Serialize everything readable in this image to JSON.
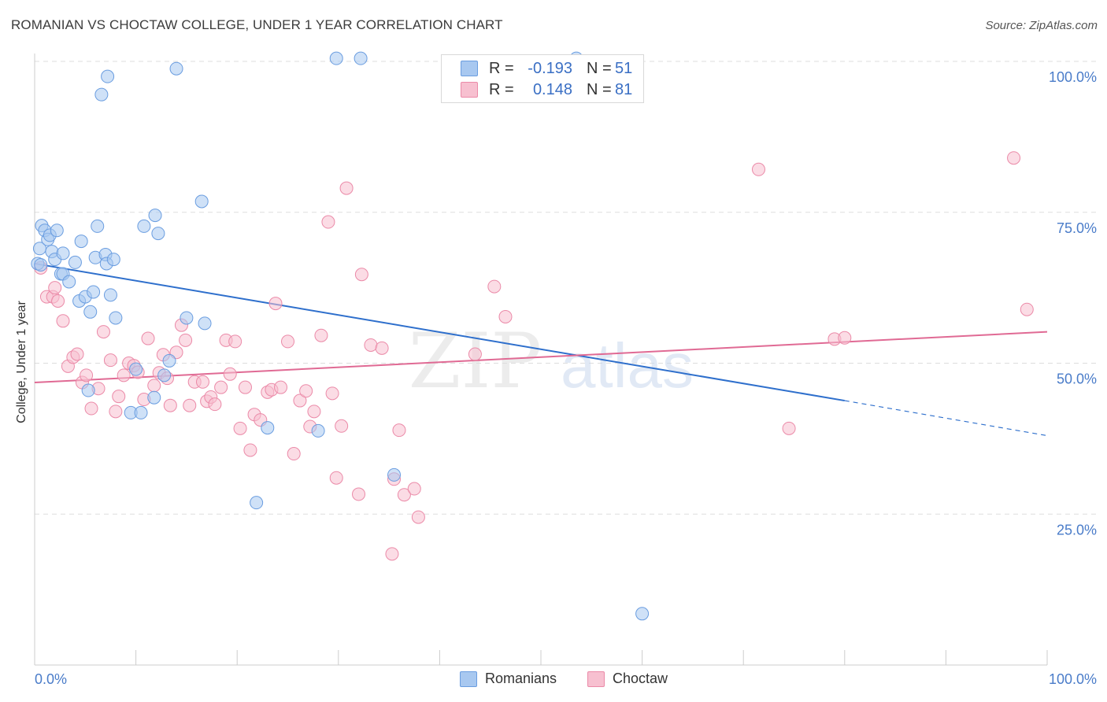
{
  "title": "ROMANIAN VS CHOCTAW COLLEGE, UNDER 1 YEAR CORRELATION CHART",
  "source": "Source: ZipAtlas.com",
  "legend": {
    "rows": [
      {
        "r_label": "R =",
        "r_value": "-0.193",
        "n_label": "N =",
        "n_value": "51",
        "color": "#a8c8f0"
      },
      {
        "r_label": "R =",
        "r_value": "0.148",
        "n_label": "N =",
        "n_value": "81",
        "color": "#f7b8ca"
      }
    ]
  },
  "bottom_legend": {
    "romanians": "Romanians",
    "choctaw": "Choctaw"
  },
  "colors": {
    "romanians_fill": "#a8c8f0",
    "romanians_stroke": "#6a9de0",
    "romanians_line": "#2e6fcc",
    "choctaw_fill": "#f7c0d0",
    "choctaw_stroke": "#eb8aa8",
    "choctaw_line": "#e06a94",
    "tick_label": "#4a7cc9",
    "grid": "#dddddd"
  },
  "watermark": {
    "part1": "ZIP",
    "part2": "atlas"
  },
  "chart_data": {
    "type": "scatter",
    "ylabel": "College, Under 1 year",
    "x_tick_labels": [
      "0.0%",
      "100.0%"
    ],
    "y_tick_labels": [
      "100.0%",
      "75.0%",
      "50.0%",
      "25.0%"
    ],
    "xlim": [
      0,
      100
    ],
    "ylim": [
      0,
      100
    ],
    "grid": true,
    "series": [
      {
        "name": "Romanians",
        "points": [
          [
            0.3,
            66.5
          ],
          [
            0.5,
            69
          ],
          [
            0.7,
            72.8
          ],
          [
            1.0,
            72.0
          ],
          [
            1.3,
            70.5
          ],
          [
            1.5,
            71.2
          ],
          [
            1.7,
            68.5
          ],
          [
            2.2,
            72
          ],
          [
            2.0,
            67.2
          ],
          [
            2.8,
            68.2
          ],
          [
            2.6,
            64.8
          ],
          [
            2.8,
            64.8
          ],
          [
            3.4,
            63.5
          ],
          [
            4.0,
            66.7
          ],
          [
            4.4,
            60.3
          ],
          [
            4.6,
            70.2
          ],
          [
            5.0,
            61
          ],
          [
            5.3,
            45.5
          ],
          [
            5.5,
            58.5
          ],
          [
            5.8,
            61.8
          ],
          [
            6.0,
            67.5
          ],
          [
            6.2,
            72.7
          ],
          [
            6.6,
            94.5
          ],
          [
            7.0,
            68
          ],
          [
            7.1,
            66.5
          ],
          [
            7.2,
            97.5
          ],
          [
            7.5,
            61.3
          ],
          [
            7.8,
            67.2
          ],
          [
            8.0,
            57.5
          ],
          [
            9.5,
            41.8
          ],
          [
            10,
            49
          ],
          [
            10.5,
            41.8
          ],
          [
            10.8,
            72.7
          ],
          [
            11.8,
            44.3
          ],
          [
            11.9,
            74.5
          ],
          [
            12.2,
            71.5
          ],
          [
            12.8,
            48
          ],
          [
            13.3,
            50.4
          ],
          [
            14,
            98.8
          ],
          [
            15,
            57.5
          ],
          [
            16.5,
            76.8
          ],
          [
            16.8,
            56.6
          ],
          [
            23,
            39.3
          ],
          [
            28,
            38.8
          ],
          [
            21.9,
            26.9
          ],
          [
            29.8,
            100.5
          ],
          [
            32.2,
            100.5
          ],
          [
            35.5,
            31.5
          ],
          [
            60,
            8.5
          ],
          [
            53.5,
            100.5
          ],
          [
            0.6,
            66.3
          ]
        ],
        "trend": {
          "x0": 0,
          "y0": 66.5,
          "x1": 80,
          "y1": 43.8,
          "dash_to_x": 100,
          "dash_to_y": 38.0
        }
      },
      {
        "name": "Choctaw",
        "points": [
          [
            0.6,
            65.8
          ],
          [
            1.2,
            61
          ],
          [
            1.8,
            61
          ],
          [
            2.0,
            62.5
          ],
          [
            2.3,
            60.3
          ],
          [
            2.8,
            57
          ],
          [
            3.3,
            49.5
          ],
          [
            3.8,
            51
          ],
          [
            4.2,
            51.5
          ],
          [
            4.7,
            46.8
          ],
          [
            5.1,
            48
          ],
          [
            5.6,
            42.5
          ],
          [
            6.3,
            45.8
          ],
          [
            6.8,
            55.2
          ],
          [
            7.5,
            50.5
          ],
          [
            8.0,
            42
          ],
          [
            8.3,
            44.5
          ],
          [
            8.8,
            48
          ],
          [
            9.3,
            50
          ],
          [
            9.8,
            49.6
          ],
          [
            10.2,
            48.5
          ],
          [
            10.8,
            44
          ],
          [
            11.2,
            54.1
          ],
          [
            11.8,
            46.3
          ],
          [
            12.3,
            48.4
          ],
          [
            12.7,
            51.4
          ],
          [
            13.1,
            47.5
          ],
          [
            13.4,
            43
          ],
          [
            14.0,
            51.8
          ],
          [
            14.5,
            56.3
          ],
          [
            14.9,
            53.8
          ],
          [
            15.3,
            43
          ],
          [
            15.8,
            46.9
          ],
          [
            16.6,
            46.9
          ],
          [
            17.0,
            43.7
          ],
          [
            17.4,
            44.4
          ],
          [
            17.8,
            43.2
          ],
          [
            18.4,
            46
          ],
          [
            18.9,
            53.8
          ],
          [
            19.3,
            48.2
          ],
          [
            19.8,
            53.6
          ],
          [
            20.3,
            39.2
          ],
          [
            20.8,
            46
          ],
          [
            21.3,
            35.6
          ],
          [
            21.7,
            41.5
          ],
          [
            22.3,
            40.6
          ],
          [
            23.0,
            45.2
          ],
          [
            23.4,
            45.6
          ],
          [
            23.8,
            59.9
          ],
          [
            24.3,
            46
          ],
          [
            25.0,
            53.6
          ],
          [
            25.6,
            35
          ],
          [
            26.2,
            43.8
          ],
          [
            26.8,
            45.4
          ],
          [
            27.2,
            39.5
          ],
          [
            27.6,
            42
          ],
          [
            28.3,
            54.6
          ],
          [
            29.0,
            73.4
          ],
          [
            29.4,
            45
          ],
          [
            29.8,
            31
          ],
          [
            30.3,
            39.6
          ],
          [
            30.8,
            79
          ],
          [
            32.0,
            28.3
          ],
          [
            32.3,
            64.7
          ],
          [
            33.2,
            53
          ],
          [
            34.3,
            52.5
          ],
          [
            35.5,
            30.8
          ],
          [
            36.0,
            38.9
          ],
          [
            36.5,
            28.2
          ],
          [
            37.5,
            29.2
          ],
          [
            37.9,
            24.5
          ],
          [
            35.3,
            18.4
          ],
          [
            43.5,
            51.5
          ],
          [
            45.4,
            62.7
          ],
          [
            46.5,
            57.7
          ],
          [
            71.5,
            82.1
          ],
          [
            74.5,
            39.2
          ],
          [
            79,
            54
          ],
          [
            80,
            54.2
          ],
          [
            96.7,
            84
          ],
          [
            98,
            58.9
          ]
        ],
        "trend": {
          "x0": 0,
          "y0": 46.8,
          "x1": 100,
          "y1": 55.2
        }
      }
    ]
  }
}
